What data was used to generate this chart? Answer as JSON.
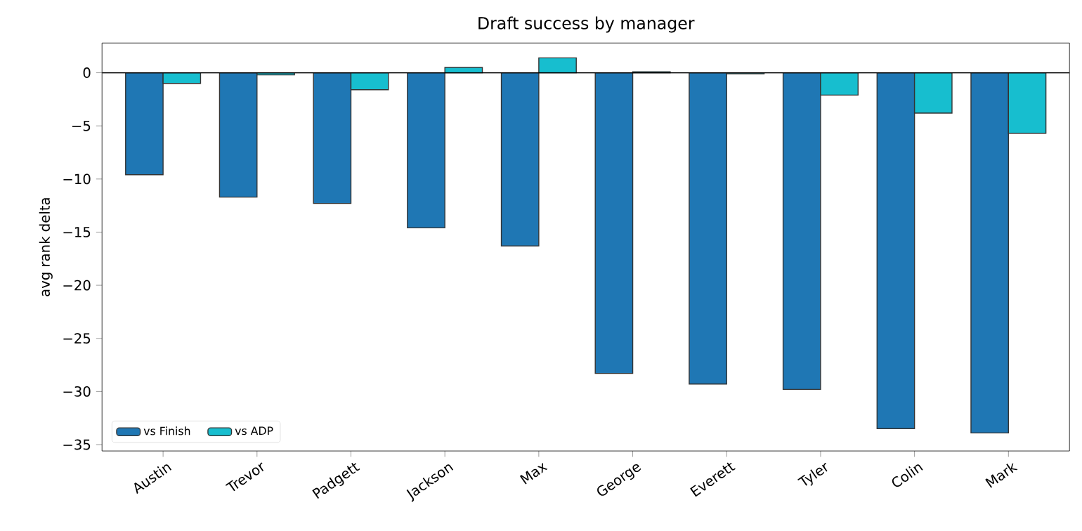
{
  "chart_data": {
    "type": "bar",
    "title": "Draft success by manager",
    "ylabel": "avg rank delta",
    "categories": [
      "Austin",
      "Trevor",
      "Padgett",
      "Jackson",
      "Max",
      "George",
      "Everett",
      "Tyler",
      "Colin",
      "Mark"
    ],
    "series": [
      {
        "name": "vs Finish",
        "color": "#1f77b4",
        "values": [
          -9.6,
          -11.7,
          -12.3,
          -14.6,
          -16.3,
          -28.3,
          -29.3,
          -29.8,
          -33.5,
          -33.9
        ]
      },
      {
        "name": "vs ADP",
        "color": "#17becf",
        "values": [
          -1.0,
          -0.2,
          -1.6,
          0.5,
          1.4,
          0.1,
          -0.1,
          -2.1,
          -3.8,
          -5.7
        ]
      }
    ],
    "ylim": [
      -35.6,
      2.8
    ],
    "yticks": [
      {
        "value": 0,
        "label": "0"
      },
      {
        "value": -5,
        "label": "−5"
      },
      {
        "value": -10,
        "label": "−10"
      },
      {
        "value": -15,
        "label": "−15"
      },
      {
        "value": -20,
        "label": "−20"
      },
      {
        "value": -25,
        "label": "−25"
      },
      {
        "value": -30,
        "label": "−30"
      },
      {
        "value": -35,
        "label": "−35"
      }
    ],
    "ref_lines": [
      {
        "axis": "y",
        "value": 0,
        "color": "#000000"
      }
    ],
    "grid": false,
    "legend": "bottom left"
  }
}
